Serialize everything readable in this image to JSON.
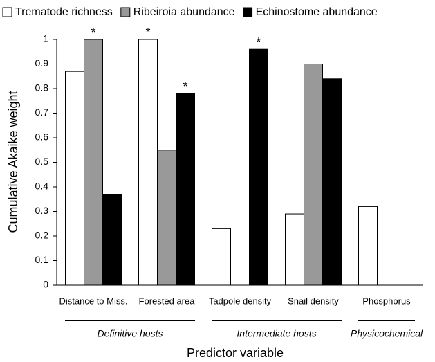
{
  "chart_data": {
    "type": "bar",
    "ylabel": "Cumulative Akaike weight",
    "xlabel": "Predictor variable",
    "categories": [
      "Distance to Miss.",
      "Forested area",
      "Tadpole density",
      "Snail density",
      "Phosphorus"
    ],
    "series": [
      {
        "name": "Trematode richness",
        "color": "#ffffff",
        "values": [
          0.87,
          1.0,
          0.23,
          0.29,
          0.32
        ]
      },
      {
        "name": "Ribeiroia abundance",
        "color": "#999999",
        "values": [
          1.0,
          0.55,
          null,
          0.9,
          null
        ]
      },
      {
        "name": "Echinostome abundance",
        "color": "#000000",
        "values": [
          0.37,
          0.78,
          0.96,
          0.84,
          null
        ]
      }
    ],
    "ylim": [
      0,
      1
    ],
    "yticks": [
      0,
      0.1,
      0.2,
      0.3,
      0.4,
      0.5,
      0.6,
      0.7,
      0.8,
      0.9,
      1
    ],
    "grid": false,
    "legend": "top",
    "annotations": [
      {
        "series": "Ribeiroia abundance",
        "category": "Distance to Miss.",
        "text": "*"
      },
      {
        "series": "Trematode richness",
        "category": "Forested area",
        "text": "*"
      },
      {
        "series": "Echinostome abundance",
        "category": "Forested area",
        "text": "*"
      },
      {
        "series": "Echinostome abundance",
        "category": "Tadpole density",
        "text": "*"
      }
    ],
    "groups": [
      {
        "label": "Definitive hosts",
        "categories": [
          "Distance to Miss.",
          "Forested area"
        ]
      },
      {
        "label": "Intermediate hosts",
        "categories": [
          "Tadpole density",
          "Snail density"
        ]
      },
      {
        "label": "Physicochemical",
        "categories": [
          "Phosphorus"
        ]
      }
    ]
  }
}
